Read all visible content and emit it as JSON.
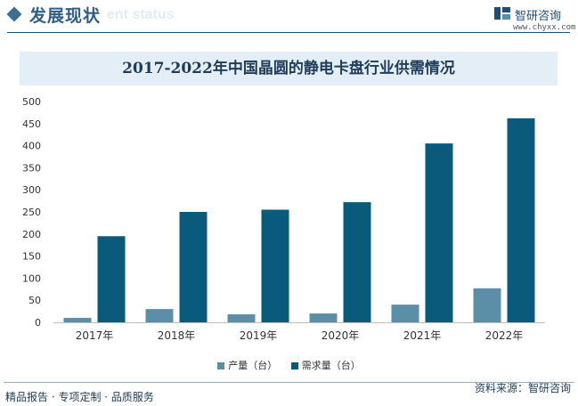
{
  "header": {
    "section_title": "发展现状",
    "section_subtitle": "ent status",
    "logo_name": "智研咨询",
    "logo_url": "www.chyxx.com"
  },
  "colors": {
    "production": "#5b8fa8",
    "demand": "#0a5a7c",
    "title_band": "#e4eef7",
    "accent": "#2f5f86"
  },
  "chart_data": {
    "type": "bar",
    "title": "2017-2022年中国晶圆的静电卡盘行业供需情况",
    "categories": [
      "2017年",
      "2018年",
      "2019年",
      "2020年",
      "2021年",
      "2022年"
    ],
    "series": [
      {
        "name": "产量（台）",
        "values": [
          10,
          30,
          18,
          20,
          40,
          77
        ]
      },
      {
        "name": "需求量（台）",
        "values": [
          195,
          250,
          255,
          272,
          405,
          462
        ]
      }
    ],
    "ylim": [
      0,
      500
    ],
    "yticks": [
      0,
      50,
      100,
      150,
      200,
      250,
      300,
      350,
      400,
      450,
      500
    ],
    "xlabel": "",
    "ylabel": "",
    "grid": false,
    "legend_position": "bottom"
  },
  "footer": {
    "slogan": "精品报告 · 专项定制 · 品质服务",
    "source": "资料来源：智研咨询"
  }
}
